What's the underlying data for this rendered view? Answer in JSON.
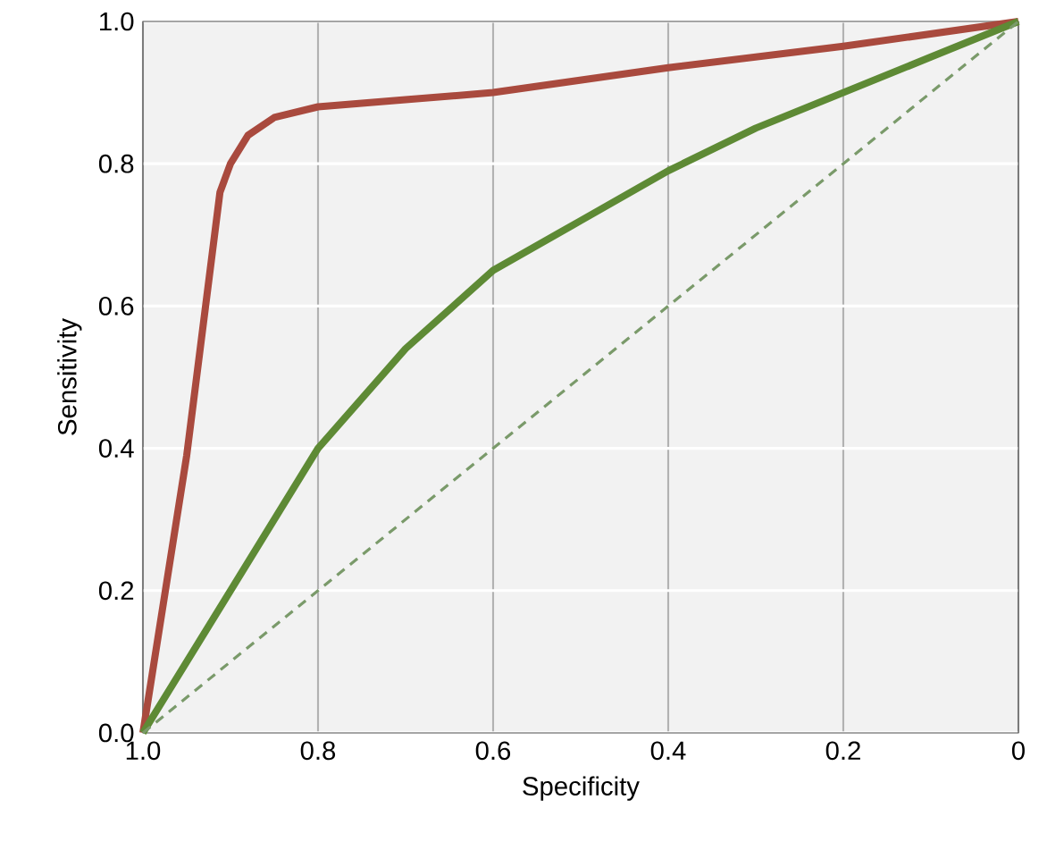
{
  "chart_data": {
    "type": "line",
    "xlabel": "Specificity",
    "ylabel": "Sensitivity",
    "xlim": [
      1,
      0
    ],
    "ylim": [
      0,
      1
    ],
    "xticks": [
      {
        "value": 1,
        "label": "1.0"
      },
      0.8,
      0.6,
      0.4,
      0.2,
      0
    ],
    "yticks": [
      {
        "value": 0,
        "label": "0.0"
      },
      0.2,
      0.4,
      0.6,
      0.8,
      {
        "value": 1,
        "label": "1.0"
      }
    ],
    "grid": true,
    "series": [
      {
        "color": "#a94a3e",
        "x": [
          1,
          0.95,
          0.912,
          0.9,
          0.88,
          0.85,
          0.8,
          0.7,
          0.6,
          0.4,
          0.2,
          0
        ],
        "values": [
          0,
          0.39,
          0.76,
          0.8,
          0.84,
          0.865,
          0.88,
          0.89,
          0.9,
          0.935,
          0.965,
          1
        ]
      },
      {
        "color": "#5e8a35",
        "x": [
          1,
          0.9,
          0.8,
          0.7,
          0.6,
          0.5,
          0.4,
          0.3,
          0.2,
          0.1,
          0
        ],
        "values": [
          0,
          0.2,
          0.4,
          0.54,
          0.65,
          0.72,
          0.79,
          0.85,
          0.9,
          0.95,
          1
        ]
      },
      {
        "color": "#7a9a6a",
        "line_style": "dashed",
        "x": [
          1,
          0
        ],
        "values": [
          0,
          1
        ]
      }
    ]
  }
}
